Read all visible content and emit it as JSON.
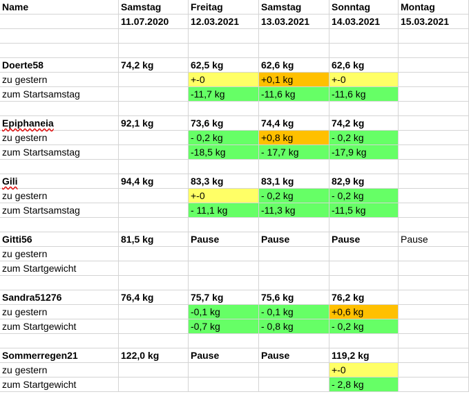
{
  "header": {
    "name_label": "Name",
    "columns": [
      {
        "weekday": "Samstag",
        "date": "11.07.2020"
      },
      {
        "weekday": "Freitag",
        "date": "12.03.2021"
      },
      {
        "weekday": "Samstag",
        "date": "13.03.2021"
      },
      {
        "weekday": "Sonntag",
        "date": "14.03.2021"
      },
      {
        "weekday": "Montag",
        "date": "15.03.2021"
      }
    ]
  },
  "colors": {
    "yellow": "#ffff66",
    "orange": "#ffc000",
    "green": "#66ff66",
    "gridline": "#d4d4d4",
    "spellcheck_underline": "#e00000"
  },
  "groups": [
    {
      "name": "Doerte58",
      "spellcheck_underline": false,
      "weights": [
        "74,2 kg",
        "62,5 kg",
        "62,6 kg",
        "62,6 kg",
        ""
      ],
      "rows": [
        {
          "label": "zu gestern",
          "cells": [
            {
              "text": "",
              "color": ""
            },
            {
              "text": "+-0",
              "color": "yellow"
            },
            {
              "text": "+0,1 kg",
              "color": "orange"
            },
            {
              "text": "+-0",
              "color": "yellow"
            },
            {
              "text": "",
              "color": ""
            }
          ]
        },
        {
          "label": "zum Startsamstag",
          "cells": [
            {
              "text": "",
              "color": ""
            },
            {
              "text": "-11,7 kg",
              "color": "green"
            },
            {
              "text": "-11,6 kg",
              "color": "green"
            },
            {
              "text": "-11,6 kg",
              "color": "green"
            },
            {
              "text": "",
              "color": ""
            }
          ]
        }
      ]
    },
    {
      "name": "Epiphaneia",
      "spellcheck_underline": true,
      "weights": [
        "92,1 kg",
        "73,6 kg",
        "74,4 kg",
        "74,2 kg",
        ""
      ],
      "rows": [
        {
          "label": "zu gestern",
          "cells": [
            {
              "text": "",
              "color": ""
            },
            {
              "text": "- 0,2 kg",
              "color": "green"
            },
            {
              "text": "+0,8 kg",
              "color": "orange"
            },
            {
              "text": "- 0,2 kg",
              "color": "green"
            },
            {
              "text": "",
              "color": ""
            }
          ]
        },
        {
          "label": "zum Startsamstag",
          "cells": [
            {
              "text": "",
              "color": ""
            },
            {
              "text": "-18,5 kg",
              "color": "green"
            },
            {
              "text": "- 17,7 kg",
              "color": "green"
            },
            {
              "text": "-17,9 kg",
              "color": "green"
            },
            {
              "text": "",
              "color": ""
            }
          ]
        }
      ]
    },
    {
      "name": "Gili",
      "spellcheck_underline": true,
      "weights": [
        "94,4 kg",
        "83,3 kg",
        "83,1 kg",
        "82,9 kg",
        ""
      ],
      "rows": [
        {
          "label": "zu gestern",
          "cells": [
            {
              "text": "",
              "color": ""
            },
            {
              "text": "+-0",
              "color": "yellow"
            },
            {
              "text": "- 0,2 kg",
              "color": "green"
            },
            {
              "text": "- 0,2 kg",
              "color": "green"
            },
            {
              "text": "",
              "color": ""
            }
          ]
        },
        {
          "label": "zum Startsamstag",
          "cells": [
            {
              "text": "",
              "color": ""
            },
            {
              "text": "- 11,1 kg",
              "color": "green"
            },
            {
              "text": "-11,3 kg",
              "color": "green"
            },
            {
              "text": "-11,5 kg",
              "color": "green"
            },
            {
              "text": "",
              "color": ""
            }
          ]
        }
      ]
    },
    {
      "name": "Gitti56",
      "spellcheck_underline": false,
      "weights": [
        "81,5 kg",
        "Pause",
        "Pause",
        "Pause",
        "Pause"
      ],
      "rows": [
        {
          "label": "zu gestern",
          "cells": [
            {
              "text": "",
              "color": ""
            },
            {
              "text": "",
              "color": ""
            },
            {
              "text": "",
              "color": ""
            },
            {
              "text": "",
              "color": ""
            },
            {
              "text": "",
              "color": ""
            }
          ]
        },
        {
          "label": "zum Startgewicht",
          "cells": [
            {
              "text": "",
              "color": ""
            },
            {
              "text": "",
              "color": ""
            },
            {
              "text": "",
              "color": ""
            },
            {
              "text": "",
              "color": ""
            },
            {
              "text": "",
              "color": ""
            }
          ]
        }
      ]
    },
    {
      "name": "Sandra51276",
      "spellcheck_underline": false,
      "weights": [
        "76,4 kg",
        "75,7 kg",
        "75,6 kg",
        "76,2 kg",
        ""
      ],
      "rows": [
        {
          "label": "zu gestern",
          "cells": [
            {
              "text": "",
              "color": ""
            },
            {
              "text": "-0,1 kg",
              "color": "green"
            },
            {
              "text": "- 0,1 kg",
              "color": "green"
            },
            {
              "text": "+0,6 kg",
              "color": "orange"
            },
            {
              "text": "",
              "color": ""
            }
          ]
        },
        {
          "label": "zum Startgewicht",
          "cells": [
            {
              "text": "",
              "color": ""
            },
            {
              "text": "-0,7 kg",
              "color": "green"
            },
            {
              "text": "- 0,8 kg",
              "color": "green"
            },
            {
              "text": "- 0,2 kg",
              "color": "green"
            },
            {
              "text": "",
              "color": ""
            }
          ]
        }
      ]
    },
    {
      "name": "Sommerregen21",
      "spellcheck_underline": false,
      "weights": [
        "122,0 kg",
        "Pause",
        "Pause",
        "119,2 kg",
        ""
      ],
      "rows": [
        {
          "label": "zu gestern",
          "cells": [
            {
              "text": "",
              "color": ""
            },
            {
              "text": "",
              "color": ""
            },
            {
              "text": "",
              "color": ""
            },
            {
              "text": "+-0",
              "color": "yellow"
            },
            {
              "text": "",
              "color": ""
            }
          ]
        },
        {
          "label": "zum Startgewicht",
          "cells": [
            {
              "text": "",
              "color": ""
            },
            {
              "text": "",
              "color": ""
            },
            {
              "text": "",
              "color": ""
            },
            {
              "text": "- 2,8 kg",
              "color": "green"
            },
            {
              "text": "",
              "color": ""
            }
          ]
        }
      ]
    }
  ]
}
